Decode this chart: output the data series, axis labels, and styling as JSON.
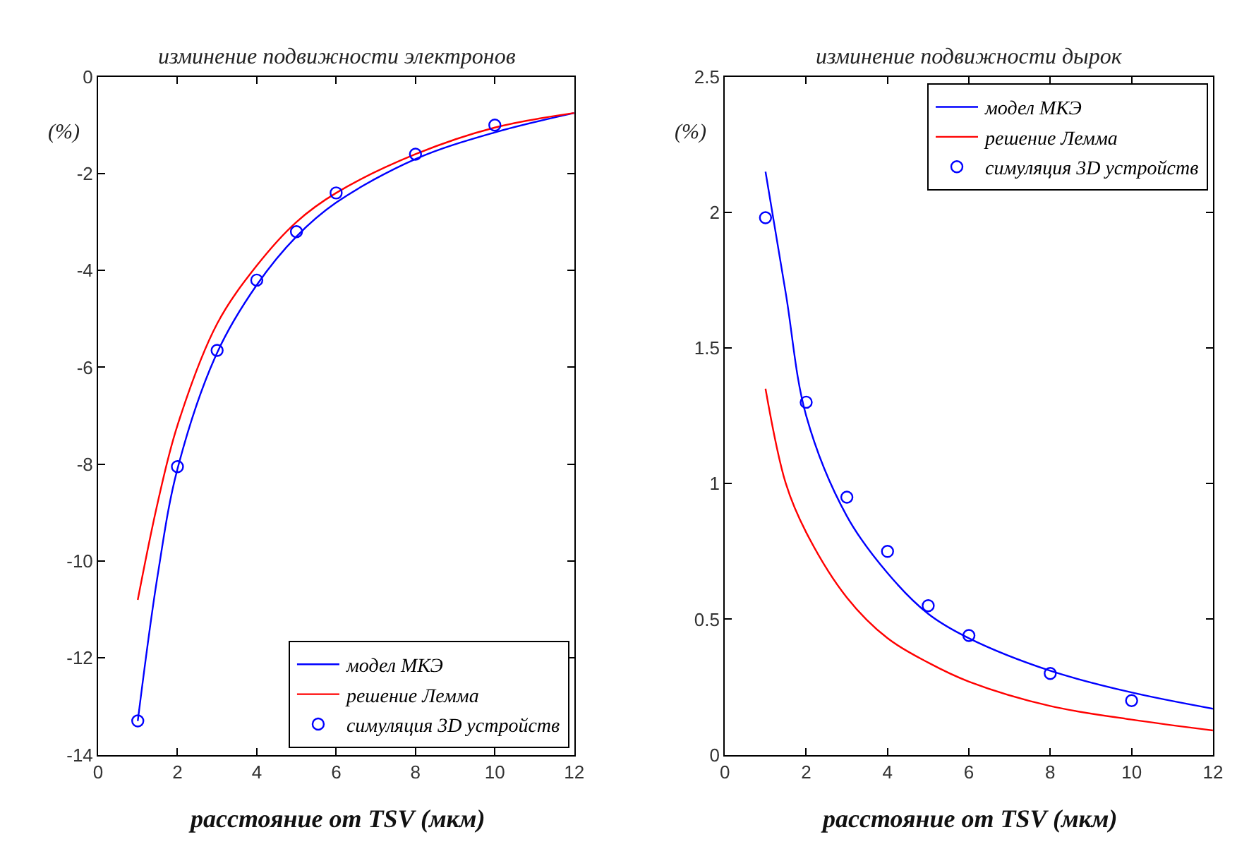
{
  "chart_data": [
    {
      "type": "line",
      "title": "изминение подвижности электронов",
      "xlabel": "расстояние от TSV (мкм)",
      "ylabel": "(%)",
      "xlim": [
        0,
        12
      ],
      "xticks": [
        0,
        2,
        4,
        6,
        8,
        10,
        12
      ],
      "ylim": [
        -14,
        0
      ],
      "yticks": [
        -14,
        -12,
        -10,
        -8,
        -6,
        -4,
        -2,
        0
      ],
      "legend": "bottom right",
      "series": [
        {
          "name": "модел МКЭ",
          "color": "#0000ff",
          "marker": "none",
          "x": [
            1,
            1.5,
            2,
            3,
            4,
            5,
            6,
            8,
            10,
            12
          ],
          "values": [
            -13.3,
            -10.3,
            -8.1,
            -5.7,
            -4.3,
            -3.3,
            -2.6,
            -1.7,
            -1.15,
            -0.75
          ]
        },
        {
          "name": "решение Лемма",
          "color": "#ff0000",
          "marker": "none",
          "x": [
            1,
            1.5,
            2,
            3,
            4,
            5,
            6,
            8,
            10,
            12
          ],
          "values": [
            -10.8,
            -8.8,
            -7.2,
            -5.1,
            -3.9,
            -3.0,
            -2.4,
            -1.6,
            -1.05,
            -0.75
          ]
        },
        {
          "name": "симуляция 3D устройств",
          "color": "#0000ff",
          "type": "scatter",
          "marker": "circle",
          "x": [
            1,
            2,
            3,
            4,
            5,
            6,
            8,
            10
          ],
          "values": [
            -13.3,
            -8.05,
            -5.65,
            -4.2,
            -3.2,
            -2.4,
            -1.6,
            -1.0
          ]
        }
      ]
    },
    {
      "type": "line",
      "title": "изминение подвижности дырок",
      "xlabel": "расстояние от TSV (мкм)",
      "ylabel": "(%)",
      "xlim": [
        0,
        12
      ],
      "xticks": [
        0,
        2,
        4,
        6,
        8,
        10,
        12
      ],
      "ylim": [
        0,
        2.5
      ],
      "yticks": [
        0,
        0.5,
        1,
        1.5,
        2,
        2.5
      ],
      "legend": "top right",
      "series": [
        {
          "name": "модел МКЭ",
          "color": "#0000ff",
          "marker": "none",
          "x": [
            1,
            1.5,
            2,
            3,
            4,
            5,
            6,
            8,
            10,
            12
          ],
          "values": [
            2.15,
            1.7,
            1.25,
            0.88,
            0.67,
            0.52,
            0.43,
            0.31,
            0.23,
            0.17
          ]
        },
        {
          "name": "решение Лемма",
          "color": "#ff0000",
          "marker": "none",
          "x": [
            1,
            1.5,
            2,
            3,
            4,
            5,
            6,
            8,
            10,
            12
          ],
          "values": [
            1.35,
            1.0,
            0.82,
            0.58,
            0.43,
            0.34,
            0.27,
            0.18,
            0.13,
            0.09
          ]
        },
        {
          "name": "симуляция 3D устройств",
          "color": "#0000ff",
          "type": "scatter",
          "marker": "circle",
          "x": [
            1,
            2,
            3,
            4,
            5,
            6,
            8,
            10
          ],
          "values": [
            1.98,
            1.3,
            0.95,
            0.75,
            0.55,
            0.44,
            0.3,
            0.2
          ]
        }
      ]
    }
  ]
}
